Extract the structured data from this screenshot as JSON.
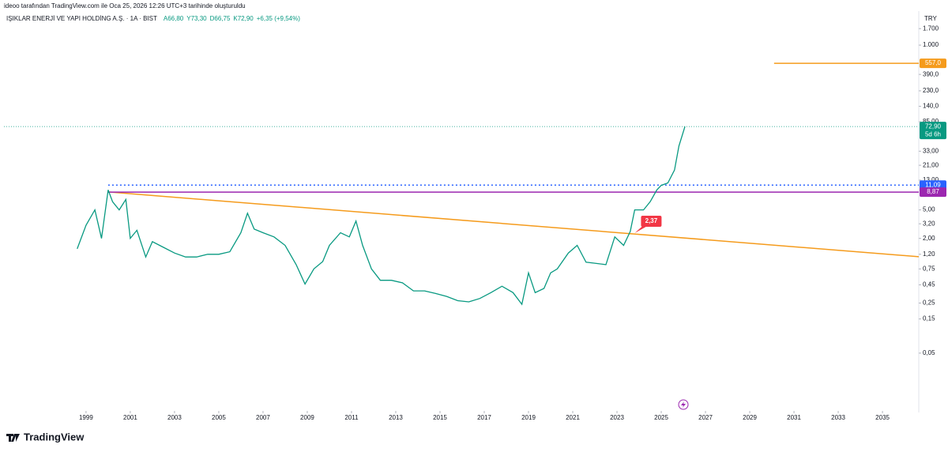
{
  "header": "ideoo tarafından TradingView.com ile Oca 25, 2026 12:26 UTC+3 tarihinde oluşturuldu",
  "chart_data": {
    "type": "line",
    "title": "IŞIKLAR ENERJİ VE YAPI HOLDİNG A.Ş. · 1A · BIST",
    "ohlc": [
      {
        "value": 66.8,
        "label": "A66,80"
      },
      {
        "value": 73.3,
        "label": "Y73,30"
      },
      {
        "value": 66.75,
        "label": "D66,75"
      },
      {
        "value": 72.9,
        "label": "K72,90"
      }
    ],
    "change": "+6,35 (+9,54%)",
    "currency": "TRY",
    "log_scale": true,
    "grid": false,
    "series": [
      {
        "color": "#089981",
        "x": [
          1998.6,
          1999.0,
          1999.4,
          1999.7,
          2000.0,
          2000.2,
          2000.5,
          2000.8,
          2001.0,
          2001.3,
          2001.7,
          2002.0,
          2002.5,
          2003.0,
          2003.5,
          2004.0,
          2004.5,
          2005.0,
          2005.5,
          2006.0,
          2006.3,
          2006.6,
          2007.0,
          2007.5,
          2008.0,
          2008.5,
          2008.9,
          2009.3,
          2009.7,
          2010.0,
          2010.5,
          2010.9,
          2011.2,
          2011.5,
          2011.9,
          2012.3,
          2012.8,
          2013.3,
          2013.8,
          2014.3,
          2014.8,
          2015.3,
          2015.8,
          2016.3,
          2016.8,
          2017.3,
          2017.8,
          2018.3,
          2018.7,
          2019.0,
          2019.3,
          2019.7,
          2020.0,
          2020.3,
          2020.8,
          2021.2,
          2021.6,
          2022.0,
          2022.5,
          2022.9,
          2023.3,
          2023.6,
          2023.8,
          2024.2,
          2024.5,
          2024.8,
          2025.0,
          2025.3,
          2025.6,
          2025.8,
          2026.07
        ],
        "values": [
          1.43,
          3.06,
          5.0,
          2.0,
          9.5,
          6.5,
          5.0,
          7.0,
          2.0,
          2.6,
          1.1,
          1.8,
          1.5,
          1.25,
          1.1,
          1.1,
          1.2,
          1.2,
          1.3,
          2.4,
          4.5,
          2.7,
          2.4,
          2.1,
          1.6,
          0.86,
          0.46,
          0.75,
          0.95,
          1.6,
          2.4,
          2.1,
          3.5,
          1.6,
          0.75,
          0.52,
          0.52,
          0.48,
          0.37,
          0.37,
          0.34,
          0.31,
          0.27,
          0.26,
          0.29,
          0.35,
          0.43,
          0.35,
          0.24,
          0.66,
          0.35,
          0.4,
          0.66,
          0.75,
          1.25,
          1.6,
          0.93,
          0.9,
          0.86,
          2.1,
          1.6,
          2.5,
          5.0,
          5.0,
          6.5,
          9.5,
          11.0,
          11.9,
          18.0,
          39.0,
          72.9
        ]
      }
    ],
    "last_price": {
      "value": 72.9,
      "label": "72,90",
      "countdown": "5d 6h",
      "color": "#089981"
    },
    "levels": [
      {
        "value": 557,
        "label": "557,0",
        "color": "#f59b1c",
        "dash": "",
        "from": 2030.1
      },
      {
        "value": 11.09,
        "label": "11,09",
        "color": "#2962ff",
        "dash": "2 3",
        "from": 2000.0
      },
      {
        "value": 8.87,
        "label": "8,87",
        "color": "#9c27b0",
        "dash": "",
        "from": 2000.0
      }
    ],
    "trendline": {
      "x": [
        2000.0,
        2036.64
      ],
      "values": [
        8.9,
        1.11
      ],
      "color": "#f59b1c"
    },
    "annotation": {
      "x": 2023.8,
      "value": 2.37,
      "label": "2,37",
      "color": "#f23645"
    },
    "xlim": [
      1995.29,
      2036.64
    ],
    "xticks": [
      1999,
      2001,
      2003,
      2005,
      2007,
      2009,
      2011,
      2013,
      2015,
      2017,
      2019,
      2021,
      2023,
      2025,
      2027,
      2029,
      2031,
      2033,
      2035
    ],
    "ylim": [
      0.0078,
      2700
    ],
    "yticks": [
      {
        "value": 1700,
        "label": "1.700"
      },
      {
        "value": 1000,
        "label": "1.000"
      },
      {
        "value": 390,
        "label": "390,0"
      },
      {
        "value": 230,
        "label": "230,0"
      },
      {
        "value": 140,
        "label": "140,0"
      },
      {
        "value": 85,
        "label": "85,00"
      },
      {
        "value": 33,
        "label": "33,00"
      },
      {
        "value": 21,
        "label": "21,00"
      },
      {
        "value": 13,
        "label": "13,00"
      },
      {
        "value": 5,
        "label": "5,00"
      },
      {
        "value": 3.2,
        "label": "3,20"
      },
      {
        "value": 2,
        "label": "2,00"
      },
      {
        "value": 1.2,
        "label": "1,20"
      },
      {
        "value": 0.75,
        "label": "0,75"
      },
      {
        "value": 0.45,
        "label": "0,45"
      },
      {
        "value": 0.25,
        "label": "0,25"
      },
      {
        "value": 0.15,
        "label": "0,15"
      },
      {
        "value": 0.05,
        "label": "0,05"
      }
    ]
  },
  "footer": "TradingView"
}
